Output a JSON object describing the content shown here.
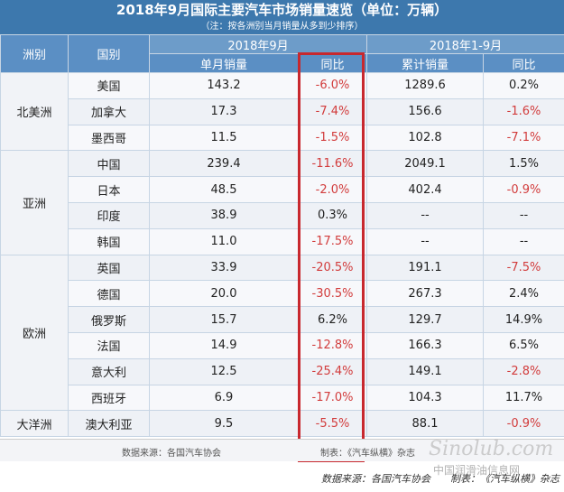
{
  "title": "2018年9月国际主要汽车市场销量速览（单位：万辆）",
  "note": "（注：按各洲别当月销量从多到少排序）",
  "headers": {
    "region": "洲别",
    "country": "国别",
    "period_month": "2018年9月",
    "period_ytd": "2018年1-9月",
    "monthly_sales": "单月销量",
    "yoy_month": "同比",
    "cumulative_sales": "累计销量",
    "yoy_ytd": "同比"
  },
  "regions": [
    {
      "name": "北美洲",
      "rows": [
        {
          "country": "美国",
          "monthly": "143.2",
          "yoy": "-6.0%",
          "cumulative": "1289.6",
          "ytd_yoy": "0.2%"
        },
        {
          "country": "加拿大",
          "monthly": "17.3",
          "yoy": "-7.4%",
          "cumulative": "156.6",
          "ytd_yoy": "-1.6%"
        },
        {
          "country": "墨西哥",
          "monthly": "11.5",
          "yoy": "-1.5%",
          "cumulative": "102.8",
          "ytd_yoy": "-7.1%"
        }
      ]
    },
    {
      "name": "亚洲",
      "rows": [
        {
          "country": "中国",
          "monthly": "239.4",
          "yoy": "-11.6%",
          "cumulative": "2049.1",
          "ytd_yoy": "1.5%"
        },
        {
          "country": "日本",
          "monthly": "48.5",
          "yoy": "-2.0%",
          "cumulative": "402.4",
          "ytd_yoy": "-0.9%"
        },
        {
          "country": "印度",
          "monthly": "38.9",
          "yoy": "0.3%",
          "cumulative": "--",
          "ytd_yoy": "--"
        },
        {
          "country": "韩国",
          "monthly": "11.0",
          "yoy": "-17.5%",
          "cumulative": "--",
          "ytd_yoy": "--"
        }
      ]
    },
    {
      "name": "欧洲",
      "rows": [
        {
          "country": "英国",
          "monthly": "33.9",
          "yoy": "-20.5%",
          "cumulative": "191.1",
          "ytd_yoy": "-7.5%"
        },
        {
          "country": "德国",
          "monthly": "20.0",
          "yoy": "-30.5%",
          "cumulative": "267.3",
          "ytd_yoy": "2.4%"
        },
        {
          "country": "俄罗斯",
          "monthly": "15.7",
          "yoy": "6.2%",
          "cumulative": "129.7",
          "ytd_yoy": "14.9%"
        },
        {
          "country": "法国",
          "monthly": "14.9",
          "yoy": "-12.8%",
          "cumulative": "166.3",
          "ytd_yoy": "6.5%"
        },
        {
          "country": "意大利",
          "monthly": "12.5",
          "yoy": "-25.4%",
          "cumulative": "149.1",
          "ytd_yoy": "-2.8%"
        },
        {
          "country": "西班牙",
          "monthly": "6.9",
          "yoy": "-17.0%",
          "cumulative": "104.3",
          "ytd_yoy": "11.7%"
        }
      ]
    },
    {
      "name": "大洋洲",
      "rows": [
        {
          "country": "澳大利亚",
          "monthly": "9.5",
          "yoy": "-5.5%",
          "cumulative": "88.1",
          "ytd_yoy": "-0.9%"
        }
      ]
    }
  ],
  "footer": {
    "source": "数据来源：各国汽车协会",
    "maker": "制表：《汽车纵横》杂志"
  },
  "caption": "数据来源：各国汽车协会　　制表：《汽车纵横》杂志",
  "watermark": {
    "logo": "Sinolub.com",
    "text": "中国润滑油信息网"
  },
  "colors": {
    "header_blue": "#3d78ad",
    "negative_red": "#d23c3c",
    "highlight_box": "#c8282e"
  }
}
